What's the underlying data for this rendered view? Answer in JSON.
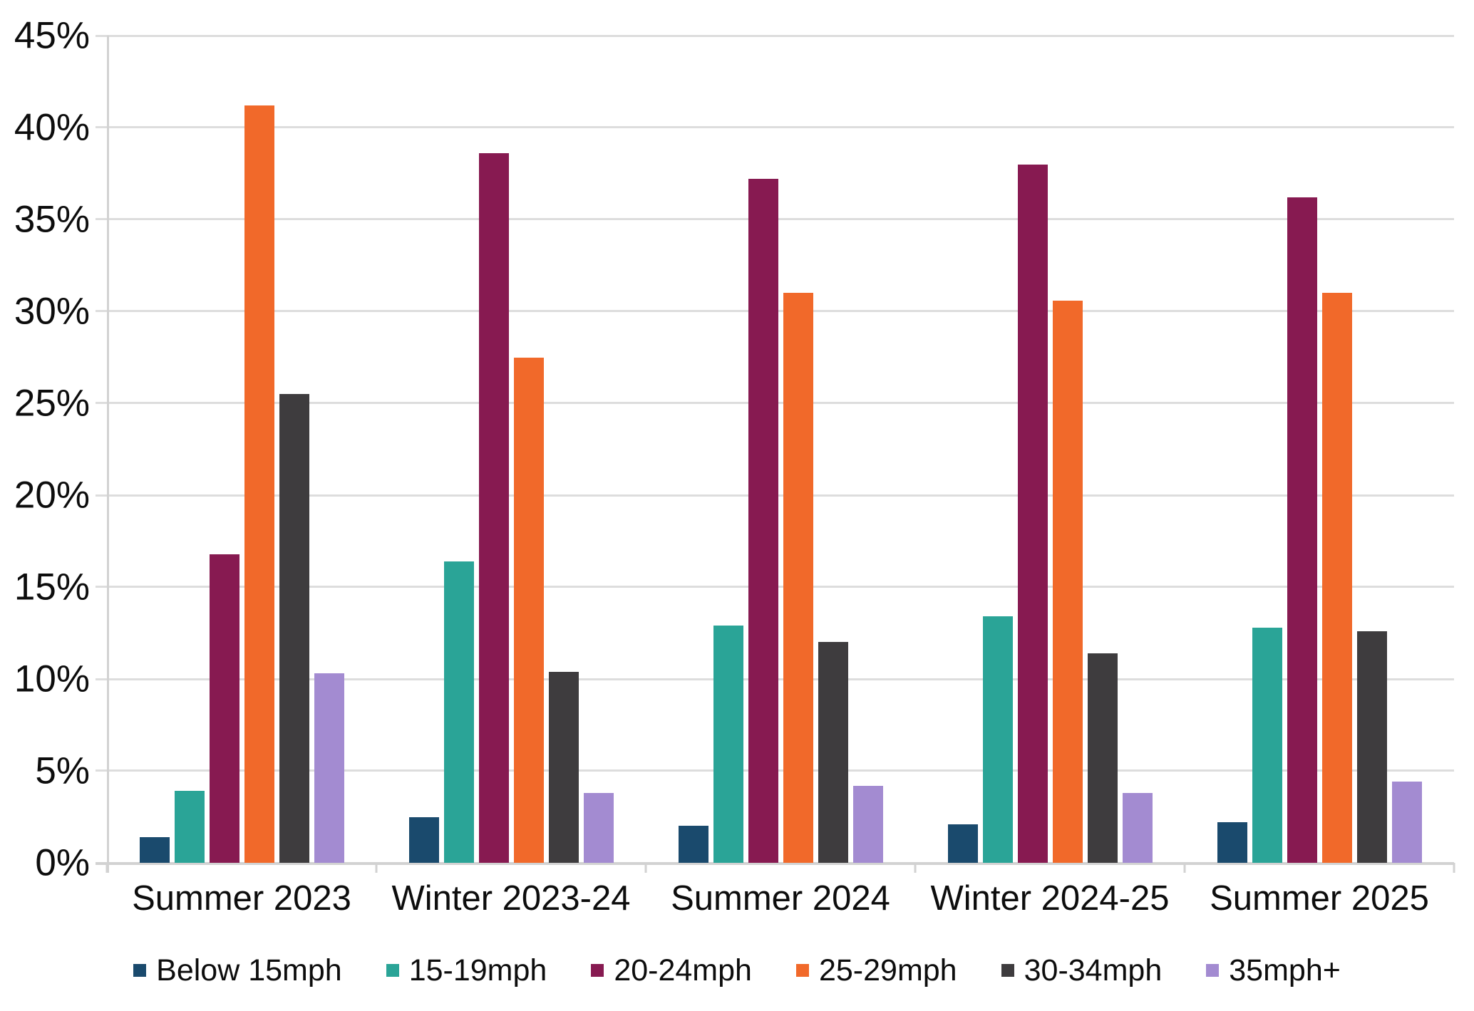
{
  "chart_data": {
    "type": "bar",
    "title": "",
    "xlabel": "",
    "ylabel": "",
    "categories": [
      "Summer 2023",
      "Winter 2023-24",
      "Summer 2024",
      "Winter 2024-25",
      "Summer 2025"
    ],
    "series": [
      {
        "name": "Below 15mph",
        "color": "#1A4A6D",
        "values": [
          1.4,
          2.5,
          2.0,
          2.1,
          2.2
        ]
      },
      {
        "name": "15-19mph",
        "color": "#2AA497",
        "values": [
          3.9,
          16.4,
          12.9,
          13.4,
          12.8
        ]
      },
      {
        "name": "20-24mph",
        "color": "#871A51",
        "values": [
          16.8,
          38.6,
          37.2,
          38.0,
          36.2
        ]
      },
      {
        "name": "25-29mph",
        "color": "#F1692A",
        "values": [
          41.2,
          27.5,
          31.0,
          30.6,
          31.0
        ]
      },
      {
        "name": "30-34mph",
        "color": "#3E3C3E",
        "values": [
          25.5,
          10.4,
          12.0,
          11.4,
          12.6
        ]
      },
      {
        "name": "35mph+",
        "color": "#A38BD1",
        "values": [
          10.3,
          3.8,
          4.2,
          3.8,
          4.4
        ]
      }
    ],
    "ylim": [
      0,
      45
    ],
    "yticks": [
      {
        "value": 0,
        "label": "0%"
      },
      {
        "value": 5,
        "label": "5%"
      },
      {
        "value": 10,
        "label": "10%"
      },
      {
        "value": 15,
        "label": "15%"
      },
      {
        "value": 20,
        "label": "20%"
      },
      {
        "value": 25,
        "label": "25%"
      },
      {
        "value": 30,
        "label": "30%"
      },
      {
        "value": 35,
        "label": "35%"
      },
      {
        "value": 40,
        "label": "40%"
      },
      {
        "value": 45,
        "label": "45%"
      }
    ],
    "grid": true,
    "legend_position": "bottom"
  },
  "colors": {
    "gridline": "#DDDDDD",
    "axis": "#D2D2D2",
    "text": "#0D0D0D",
    "background": "#FFFFFF"
  }
}
